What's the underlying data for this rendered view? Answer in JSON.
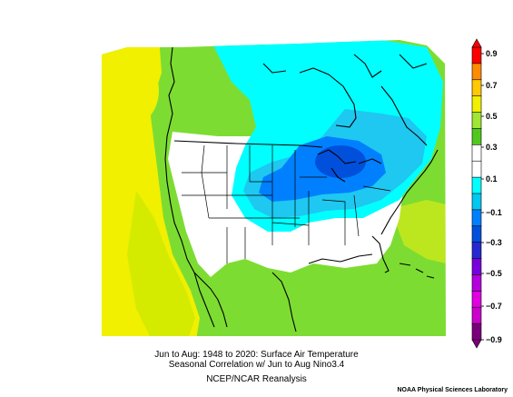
{
  "caption": {
    "line1": "Jun to Aug: 1948 to 2020: Surface Air Temperature",
    "line2": "Seasonal Correlation w/ Jun to Aug Nino3.4",
    "line3": "NCEP/NCAR Reanalysis"
  },
  "credit": "NOAA Physical Sciences Laboratory",
  "colorbar": {
    "labels": [
      "0.9",
      "0.7",
      "0.5",
      "0.3",
      "0.1",
      "−0.1",
      "−0.3",
      "−0.5",
      "−0.7",
      "−0.9"
    ],
    "colors": [
      "#ff0000",
      "#ff8c00",
      "#ffc800",
      "#f0f000",
      "#a0e632",
      "#4fc81e",
      "#ffffff",
      "#ffffff",
      "#00ffff",
      "#00c8f0",
      "#0080ff",
      "#0050dc",
      "#2828d2",
      "#7800dc",
      "#b400dc",
      "#e100e1",
      "#cc00cc",
      "#7a007a"
    ]
  },
  "colors": {
    "yellow": "#f0f000",
    "yellow_green": "#a0e632",
    "green": "#7ddc32",
    "white": "#ffffff",
    "cyan": "#00ffff",
    "light_blue": "#1ec8f0",
    "blue": "#0080ff",
    "dark_blue": "#0050dc"
  }
}
